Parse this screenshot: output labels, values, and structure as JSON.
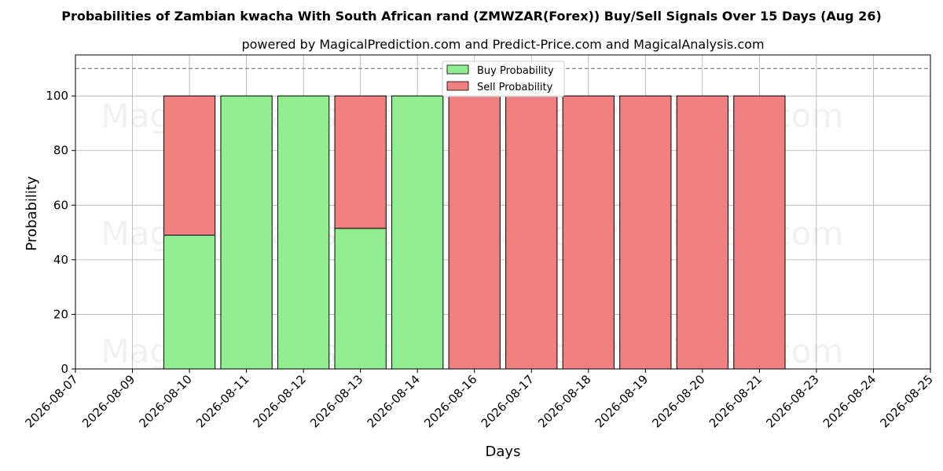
{
  "chart_data": {
    "type": "bar",
    "stacked": true,
    "title": "Probabilities of Zambian kwacha With South African rand (ZMWZAR(Forex)) Buy/Sell Signals Over 15 Days (Aug 26)",
    "subtitle": "powered by MagicalPrediction.com and Predict-Price.com and MagicalAnalysis.com",
    "xlabel": "Days",
    "ylabel": "Probability",
    "ylim": [
      0,
      115
    ],
    "yticks": [
      0,
      20,
      40,
      60,
      80,
      100
    ],
    "reference_line": 110,
    "grid": true,
    "legend_position": "top-center",
    "x_ticks": [
      "2026-08-07",
      "2026-08-09",
      "2026-08-10",
      "2026-08-11",
      "2026-08-12",
      "2026-08-13",
      "2026-08-14",
      "2026-08-16",
      "2026-08-17",
      "2026-08-18",
      "2026-08-19",
      "2026-08-20",
      "2026-08-21",
      "2026-08-23",
      "2026-08-24",
      "2026-08-25"
    ],
    "categories": [
      "2026-08-10",
      "2026-08-11",
      "2026-08-12",
      "2026-08-13",
      "2026-08-14",
      "2026-08-16",
      "2026-08-17",
      "2026-08-18",
      "2026-08-19",
      "2026-08-20",
      "2026-08-21"
    ],
    "series": [
      {
        "name": "Buy Probability",
        "color": "#90ee90",
        "values": [
          49,
          100,
          100,
          51.5,
          100,
          0,
          0,
          0,
          0,
          0,
          0
        ]
      },
      {
        "name": "Sell Probability",
        "color": "#f08080",
        "values": [
          51,
          0,
          0,
          48.5,
          0,
          100,
          100,
          100,
          100,
          100,
          100
        ]
      }
    ],
    "watermarks": [
      "MagicalAnalysis.com",
      "MagicalPrediction.com",
      "MagicalAnalysis.com",
      "MagicalPrediction.com",
      "MagicalAnalysis.com",
      "MagicalPrediction.com"
    ]
  }
}
